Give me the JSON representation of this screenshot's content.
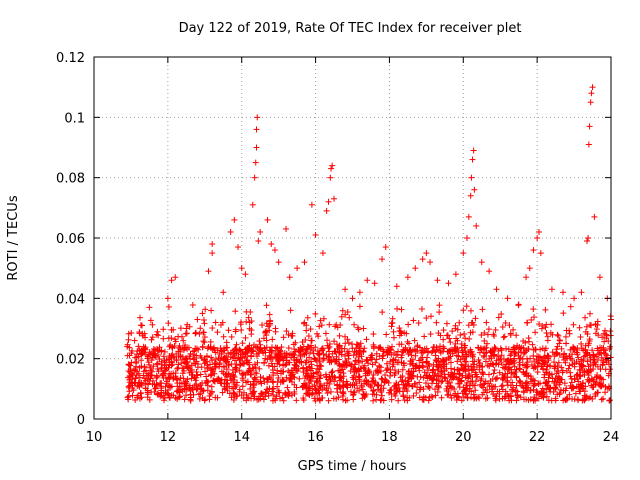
{
  "chart_data": {
    "type": "scatter",
    "title": "Day 122 of 2019, Rate Of TEC Index for receiver plet",
    "xlabel": "GPS time / hours",
    "ylabel": "ROTI / TECUs",
    "xlim": [
      10,
      24
    ],
    "ylim": [
      0,
      0.12
    ],
    "xticks": [
      10,
      12,
      14,
      16,
      18,
      20,
      22,
      24
    ],
    "xtick_labels": [
      "10",
      "12",
      "14",
      "16",
      "18",
      "20",
      "22",
      "24"
    ],
    "yticks": [
      0,
      0.02,
      0.04,
      0.06,
      0.08,
      0.1,
      0.12
    ],
    "ytick_labels": [
      "0",
      "0.02",
      "0.04",
      "0.06",
      "0.08",
      "0.1",
      "0.12"
    ],
    "grid": true,
    "marker": "+",
    "color": "#ff0000",
    "series": [
      {
        "name": "ROTI",
        "points": [
          [
            10.9,
            0.024
          ],
          [
            11.1,
            0.026
          ],
          [
            11.3,
            0.031
          ],
          [
            11.5,
            0.037
          ],
          [
            11.7,
            0.028
          ],
          [
            12.0,
            0.04
          ],
          [
            12.1,
            0.046
          ],
          [
            12.2,
            0.047
          ],
          [
            12.5,
            0.03
          ],
          [
            12.8,
            0.033
          ],
          [
            13.1,
            0.049
          ],
          [
            13.2,
            0.058
          ],
          [
            13.2,
            0.055
          ],
          [
            13.5,
            0.042
          ],
          [
            13.7,
            0.062
          ],
          [
            13.8,
            0.066
          ],
          [
            13.9,
            0.057
          ],
          [
            14.0,
            0.05
          ],
          [
            14.1,
            0.048
          ],
          [
            14.3,
            0.071
          ],
          [
            14.35,
            0.08
          ],
          [
            14.38,
            0.085
          ],
          [
            14.4,
            0.09
          ],
          [
            14.4,
            0.096
          ],
          [
            14.42,
            0.1
          ],
          [
            14.45,
            0.059
          ],
          [
            14.5,
            0.062
          ],
          [
            14.7,
            0.066
          ],
          [
            14.8,
            0.058
          ],
          [
            14.9,
            0.056
          ],
          [
            15.0,
            0.052
          ],
          [
            15.2,
            0.063
          ],
          [
            15.3,
            0.047
          ],
          [
            15.5,
            0.05
          ],
          [
            15.7,
            0.052
          ],
          [
            15.9,
            0.071
          ],
          [
            16.0,
            0.061
          ],
          [
            16.2,
            0.055
          ],
          [
            16.3,
            0.069
          ],
          [
            16.35,
            0.072
          ],
          [
            16.4,
            0.08
          ],
          [
            16.42,
            0.083
          ],
          [
            16.45,
            0.084
          ],
          [
            16.5,
            0.073
          ],
          [
            16.8,
            0.043
          ],
          [
            17.0,
            0.04
          ],
          [
            17.2,
            0.042
          ],
          [
            17.4,
            0.046
          ],
          [
            17.6,
            0.045
          ],
          [
            17.8,
            0.053
          ],
          [
            17.9,
            0.057
          ],
          [
            18.2,
            0.044
          ],
          [
            18.5,
            0.047
          ],
          [
            18.7,
            0.05
          ],
          [
            18.9,
            0.053
          ],
          [
            19.0,
            0.055
          ],
          [
            19.1,
            0.052
          ],
          [
            19.3,
            0.046
          ],
          [
            19.6,
            0.045
          ],
          [
            19.8,
            0.048
          ],
          [
            20.0,
            0.055
          ],
          [
            20.1,
            0.06
          ],
          [
            20.15,
            0.067
          ],
          [
            20.2,
            0.074
          ],
          [
            20.22,
            0.08
          ],
          [
            20.25,
            0.086
          ],
          [
            20.28,
            0.089
          ],
          [
            20.3,
            0.076
          ],
          [
            20.35,
            0.064
          ],
          [
            20.5,
            0.052
          ],
          [
            20.7,
            0.049
          ],
          [
            20.9,
            0.043
          ],
          [
            21.2,
            0.04
          ],
          [
            21.5,
            0.038
          ],
          [
            21.7,
            0.047
          ],
          [
            21.8,
            0.05
          ],
          [
            21.9,
            0.056
          ],
          [
            22.0,
            0.06
          ],
          [
            22.05,
            0.062
          ],
          [
            22.1,
            0.055
          ],
          [
            22.4,
            0.043
          ],
          [
            22.7,
            0.042
          ],
          [
            23.0,
            0.04
          ],
          [
            23.2,
            0.042
          ],
          [
            23.35,
            0.059
          ],
          [
            23.38,
            0.06
          ],
          [
            23.4,
            0.091
          ],
          [
            23.42,
            0.097
          ],
          [
            23.45,
            0.105
          ],
          [
            23.47,
            0.108
          ],
          [
            23.5,
            0.11
          ],
          [
            23.55,
            0.067
          ],
          [
            23.7,
            0.047
          ],
          [
            23.9,
            0.04
          ],
          [
            24.0,
            0.033
          ]
        ]
      }
    ]
  }
}
